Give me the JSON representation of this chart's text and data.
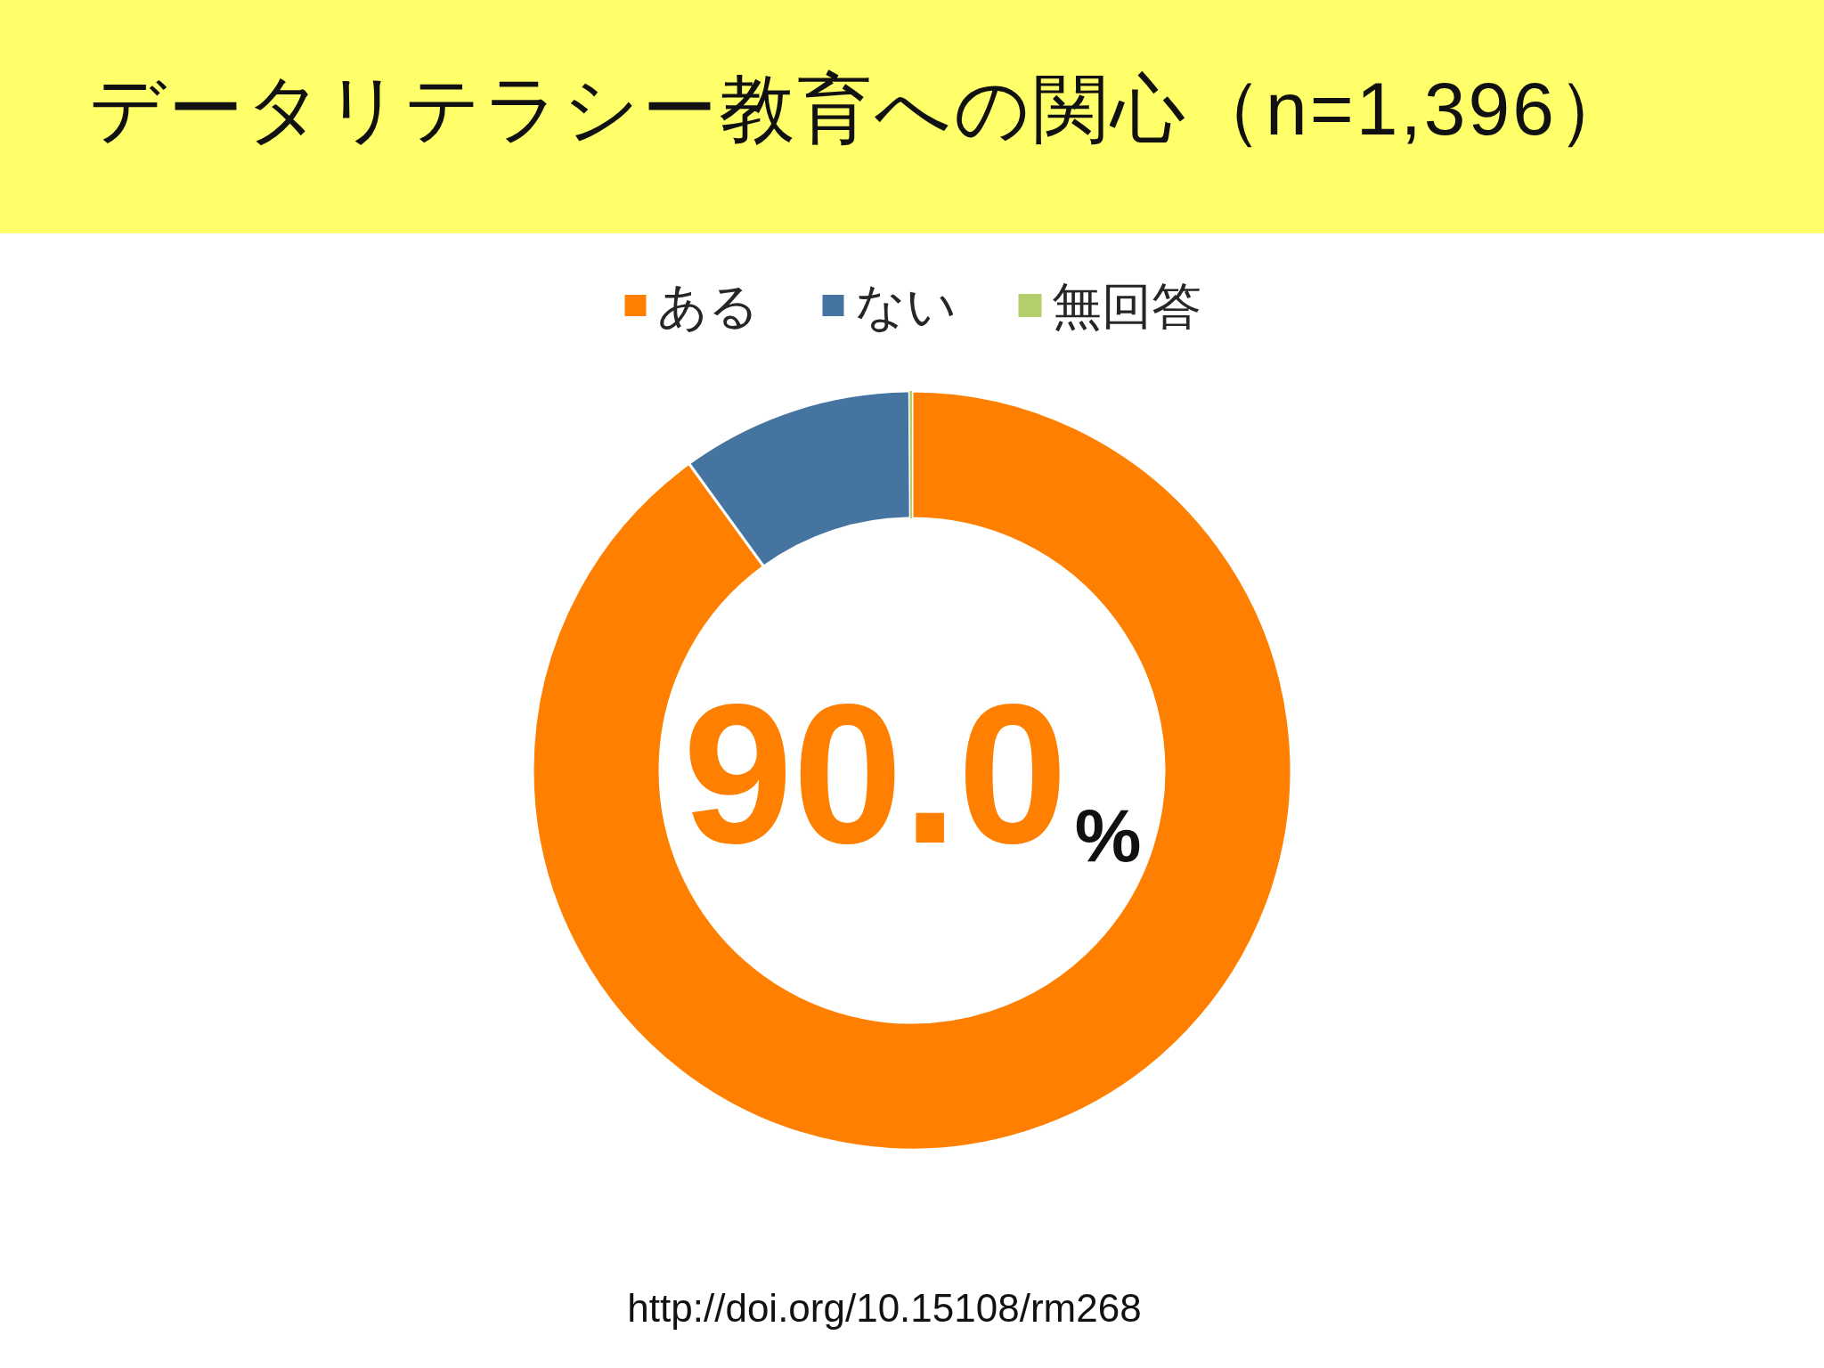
{
  "chart_data": {
    "type": "donut",
    "title": "データリテラシー教育への関心（n=1,396）",
    "categories": [
      "ある",
      "ない",
      "無回答"
    ],
    "values": [
      90.0,
      9.9,
      0.1
    ],
    "colors": [
      "#ff7f00",
      "#4674a1",
      "#b3cf6b"
    ],
    "value_labels": [
      "90.0%",
      null,
      null
    ],
    "legend": "top",
    "annotations": [
      "http://doi.org/10.15108/rm268"
    ]
  }
}
